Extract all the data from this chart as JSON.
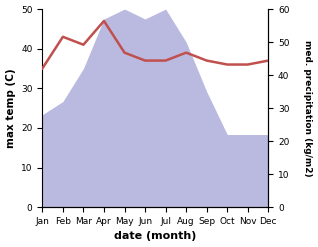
{
  "months": [
    "Jan",
    "Feb",
    "Mar",
    "Apr",
    "May",
    "Jun",
    "Jul",
    "Aug",
    "Sep",
    "Oct",
    "Nov",
    "Dec"
  ],
  "temperature": [
    35,
    43,
    41,
    47,
    39,
    37,
    37,
    39,
    37,
    36,
    36,
    37
  ],
  "precipitation": [
    28,
    32,
    42,
    57,
    60,
    57,
    60,
    50,
    35,
    22,
    22,
    22
  ],
  "temp_color": "#c0504d",
  "precip_fill_color": "#b3b3dd",
  "ylabel_left": "max temp (C)",
  "ylabel_right": "med. precipitation (kg/m2)",
  "xlabel": "date (month)",
  "ylim_left": [
    0,
    50
  ],
  "ylim_right": [
    0,
    60
  ],
  "background_color": "#ffffff"
}
